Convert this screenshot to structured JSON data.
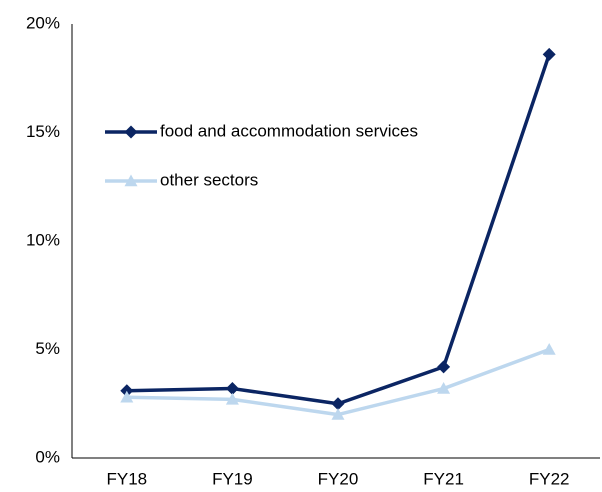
{
  "chart_data": {
    "type": "line",
    "categories": [
      "FY18",
      "FY19",
      "FY20",
      "FY21",
      "FY22"
    ],
    "series": [
      {
        "name": "food and accommodation services",
        "color": "#0b2563",
        "marker": "diamond",
        "values": [
          3.1,
          3.2,
          2.5,
          4.2,
          18.6
        ]
      },
      {
        "name": "other sectors",
        "color": "#bdd7ee",
        "marker": "triangle",
        "values": [
          2.8,
          2.7,
          2.0,
          3.2,
          5.0
        ]
      }
    ],
    "ylim": [
      0,
      20
    ],
    "yticks": [
      {
        "value": 0,
        "label": "0%"
      },
      {
        "value": 5,
        "label": "5%"
      },
      {
        "value": 10,
        "label": "10%"
      },
      {
        "value": 15,
        "label": "15%"
      },
      {
        "value": 20,
        "label": "20%"
      }
    ],
    "grid": false,
    "legend": "upper-left"
  }
}
